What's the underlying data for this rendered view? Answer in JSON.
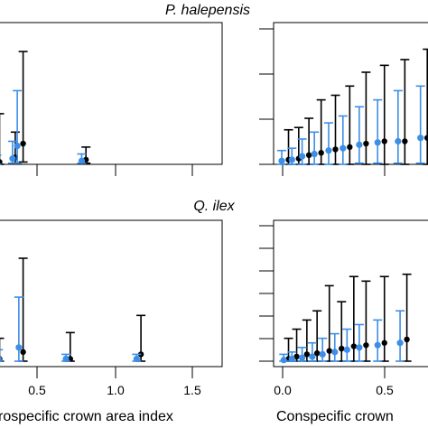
{
  "chart_data": [
    {
      "type": "errorbar-scatter",
      "panel": "P. halepensis - left",
      "title": "",
      "xlabel": "",
      "xticks": [],
      "xlim": [
        -0.2,
        1.75
      ],
      "ylim": [
        0,
        6
      ],
      "series": [
        {
          "color": "#000000",
          "points": [
            {
              "x": 0.25,
              "y": 0.1,
              "lo": 0.0,
              "hi": 2.2
            },
            {
              "x": 0.35,
              "y": 0.3,
              "lo": 0.05,
              "hi": 1.4
            },
            {
              "x": 0.4,
              "y": 0.9,
              "lo": 0.1,
              "hi": 4.9
            },
            {
              "x": 0.8,
              "y": 0.2,
              "lo": 0.05,
              "hi": 0.75
            }
          ]
        },
        {
          "color": "#3d8ee6",
          "points": [
            {
              "x": 0.25,
              "y": 0.1,
              "lo": 0.0,
              "hi": 0.4
            },
            {
              "x": 0.35,
              "y": 0.25,
              "lo": 0.05,
              "hi": 1.0
            },
            {
              "x": 0.38,
              "y": 0.8,
              "lo": 0.05,
              "hi": 3.2
            },
            {
              "x": 0.79,
              "y": 0.15,
              "lo": 0.05,
              "hi": 0.45
            }
          ]
        }
      ]
    },
    {
      "type": "errorbar-scatter",
      "panel": "P. halepensis - right",
      "title": "P. halepensis",
      "xlabel": "",
      "xticks": [],
      "xlim": [
        -0.1,
        1.3
      ],
      "ylim": [
        0,
        6
      ],
      "series": [
        {
          "color": "#000000",
          "points": [
            {
              "x": 0.02,
              "y": 0.2,
              "lo": 0.0,
              "hi": 1.5
            },
            {
              "x": 0.07,
              "y": 0.25,
              "lo": 0.0,
              "hi": 1.6
            },
            {
              "x": 0.12,
              "y": 0.4,
              "lo": 0.0,
              "hi": 2.0
            },
            {
              "x": 0.18,
              "y": 0.5,
              "lo": 0.0,
              "hi": 2.8
            },
            {
              "x": 0.25,
              "y": 0.65,
              "lo": 0.0,
              "hi": 3.0
            },
            {
              "x": 0.32,
              "y": 0.75,
              "lo": 0.0,
              "hi": 3.4
            },
            {
              "x": 0.4,
              "y": 0.9,
              "lo": 0.0,
              "hi": 4.0
            },
            {
              "x": 0.49,
              "y": 1.0,
              "lo": 0.0,
              "hi": 4.3
            },
            {
              "x": 0.59,
              "y": 1.0,
              "lo": 0.0,
              "hi": 4.55
            },
            {
              "x": 0.7,
              "y": 1.15,
              "lo": 0.0,
              "hi": 5.0
            }
          ]
        },
        {
          "color": "#3d8ee6",
          "points": [
            {
              "x": 0.0,
              "y": 0.15,
              "lo": 0.0,
              "hi": 0.6
            },
            {
              "x": 0.05,
              "y": 0.2,
              "lo": 0.0,
              "hi": 0.7
            },
            {
              "x": 0.1,
              "y": 0.35,
              "lo": 0.0,
              "hi": 1.1
            },
            {
              "x": 0.16,
              "y": 0.45,
              "lo": 0.0,
              "hi": 1.4
            },
            {
              "x": 0.23,
              "y": 0.6,
              "lo": 0.0,
              "hi": 1.8
            },
            {
              "x": 0.3,
              "y": 0.7,
              "lo": 0.0,
              "hi": 2.1
            },
            {
              "x": 0.38,
              "y": 0.85,
              "lo": 0.05,
              "hi": 2.5
            },
            {
              "x": 0.47,
              "y": 0.95,
              "lo": 0.05,
              "hi": 2.8
            },
            {
              "x": 0.57,
              "y": 1.0,
              "lo": 0.05,
              "hi": 3.2
            },
            {
              "x": 0.68,
              "y": 1.15,
              "lo": 0.05,
              "hi": 3.4
            }
          ]
        }
      ]
    },
    {
      "type": "errorbar-scatter",
      "panel": "Q. ilex - left",
      "title": "Q. ilex",
      "xlabel": "rospecific crown area index",
      "xticks": [
        0.5,
        1.0,
        1.5
      ],
      "xticklabels": [
        "0.5",
        "1.0",
        "1.5"
      ],
      "xlim": [
        -0.2,
        1.75
      ],
      "ylim": [
        0,
        6
      ],
      "series": [
        {
          "color": "#000000",
          "points": [
            {
              "x": 0.13,
              "y": 0.05,
              "lo": 0.0,
              "hi": 1.7
            },
            {
              "x": 0.25,
              "y": 0.1,
              "lo": 0.0,
              "hi": 1.0
            },
            {
              "x": 0.4,
              "y": 0.4,
              "lo": 0.0,
              "hi": 4.5
            },
            {
              "x": 0.7,
              "y": 0.1,
              "lo": 0.0,
              "hi": 1.25
            },
            {
              "x": 1.15,
              "y": 0.3,
              "lo": 0.0,
              "hi": 2.0
            }
          ]
        },
        {
          "color": "#3d8ee6",
          "points": [
            {
              "x": 0.14,
              "y": 0.05,
              "lo": 0.0,
              "hi": 0.7
            },
            {
              "x": 0.26,
              "y": 0.1,
              "lo": 0.0,
              "hi": 0.5
            },
            {
              "x": 0.39,
              "y": 0.6,
              "lo": 0.0,
              "hi": 2.8
            },
            {
              "x": 0.69,
              "y": 0.1,
              "lo": 0.0,
              "hi": 0.3
            },
            {
              "x": 1.14,
              "y": 0.1,
              "lo": 0.0,
              "hi": 0.3
            }
          ]
        }
      ]
    },
    {
      "type": "errorbar-scatter",
      "panel": "Q. ilex - right",
      "title": "",
      "xlabel": "Conspecific crown",
      "xticks": [
        0.0,
        0.5
      ],
      "xticklabels": [
        "0.0",
        "0.5"
      ],
      "xlim": [
        -0.05,
        1.25
      ],
      "ylim": [
        0,
        6
      ],
      "series": [
        {
          "color": "#000000",
          "points": [
            {
              "x": 0.02,
              "y": 0.1,
              "lo": 0.0,
              "hi": 1.0
            },
            {
              "x": 0.06,
              "y": 0.2,
              "lo": 0.0,
              "hi": 1.4
            },
            {
              "x": 0.11,
              "y": 0.3,
              "lo": 0.0,
              "hi": 1.8
            },
            {
              "x": 0.16,
              "y": 0.35,
              "lo": 0.0,
              "hi": 2.2
            },
            {
              "x": 0.22,
              "y": 0.45,
              "lo": 0.0,
              "hi": 3.3
            },
            {
              "x": 0.28,
              "y": 0.55,
              "lo": 0.0,
              "hi": 2.6
            },
            {
              "x": 0.34,
              "y": 0.65,
              "lo": 0.0,
              "hi": 3.7
            },
            {
              "x": 0.4,
              "y": 0.7,
              "lo": 0.0,
              "hi": 3.5
            },
            {
              "x": 0.49,
              "y": 0.8,
              "lo": 0.0,
              "hi": 3.7
            },
            {
              "x": 0.6,
              "y": 0.95,
              "lo": 0.0,
              "hi": 3.8
            }
          ]
        },
        {
          "color": "#3d8ee6",
          "points": [
            {
              "x": 0.01,
              "y": 0.05,
              "lo": 0.0,
              "hi": 0.3
            },
            {
              "x": 0.05,
              "y": 0.1,
              "lo": 0.0,
              "hi": 0.4
            },
            {
              "x": 0.1,
              "y": 0.15,
              "lo": 0.0,
              "hi": 0.6
            },
            {
              "x": 0.15,
              "y": 0.2,
              "lo": 0.0,
              "hi": 0.8
            },
            {
              "x": 0.2,
              "y": 0.3,
              "lo": 0.0,
              "hi": 1.0
            },
            {
              "x": 0.26,
              "y": 0.4,
              "lo": 0.0,
              "hi": 1.2
            },
            {
              "x": 0.32,
              "y": 0.5,
              "lo": 0.0,
              "hi": 1.4
            },
            {
              "x": 0.38,
              "y": 0.6,
              "lo": 0.0,
              "hi": 1.6
            },
            {
              "x": 0.47,
              "y": 0.7,
              "lo": 0.0,
              "hi": 1.8
            },
            {
              "x": 0.58,
              "y": 0.8,
              "lo": 0.0,
              "hi": 2.2
            }
          ]
        }
      ]
    }
  ]
}
